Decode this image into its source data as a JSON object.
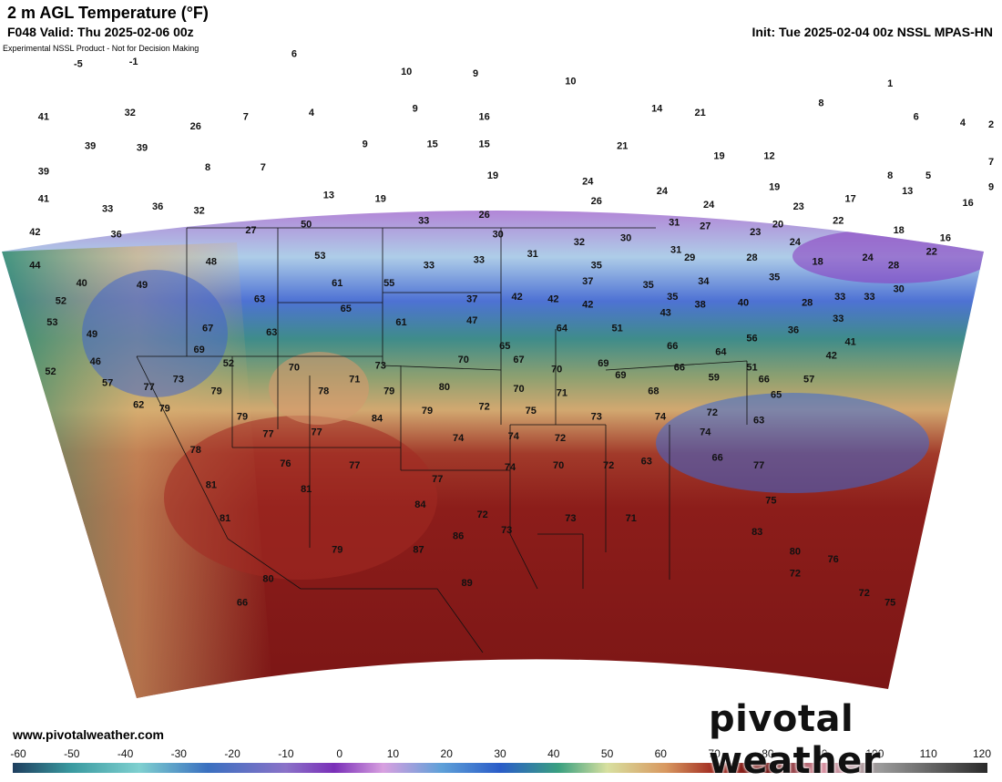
{
  "header": {
    "title": "2 m AGL Temperature (°F)",
    "valid": "F048 Valid: Thu 2025-02-06 00z",
    "init": "Init: Tue 2025-02-04 00z NSSL MPAS-HN",
    "disclaimer": "Experimental NSSL Product - Not for Decision Making"
  },
  "footer": {
    "website": "www.pivotalweather.com",
    "brand": "pivotal weather"
  },
  "colors": {
    "cold": "#7a2fb8",
    "cool": "#3f6fd6",
    "mild": "#5fa58f",
    "warm": "#e2b978",
    "hot": "#8e1a1a"
  },
  "colorbar": {
    "ticks": [
      "-60",
      "-50",
      "-40",
      "-30",
      "-20",
      "-10",
      "0",
      "10",
      "20",
      "30",
      "40",
      "50",
      "60",
      "70",
      "80",
      "90",
      "100",
      "110",
      "120"
    ]
  },
  "map_values": [
    {
      "v": "-5",
      "x": -121.0,
      "y": 50.5
    },
    {
      "v": "-1",
      "x": -117.8,
      "y": 50.6
    },
    {
      "v": "6",
      "x": -108.5,
      "y": 51.0
    },
    {
      "v": "10",
      "x": -102.0,
      "y": 50.1
    },
    {
      "v": "9",
      "x": -98.0,
      "y": 50.0
    },
    {
      "v": "10",
      "x": -92.5,
      "y": 49.6
    },
    {
      "v": "1",
      "x": -74.0,
      "y": 49.5
    },
    {
      "v": "41",
      "x": -123.0,
      "y": 47.8
    },
    {
      "v": "32",
      "x": -118.0,
      "y": 48.0
    },
    {
      "v": "26",
      "x": -114.2,
      "y": 47.3
    },
    {
      "v": "7",
      "x": -111.3,
      "y": 47.8
    },
    {
      "v": "4",
      "x": -107.5,
      "y": 48.0
    },
    {
      "v": "9",
      "x": -101.5,
      "y": 48.2
    },
    {
      "v": "16",
      "x": -97.5,
      "y": 47.8
    },
    {
      "v": "14",
      "x": -87.5,
      "y": 48.2
    },
    {
      "v": "21",
      "x": -85.0,
      "y": 48.0
    },
    {
      "v": "8",
      "x": -78.0,
      "y": 48.5
    },
    {
      "v": "6",
      "x": -72.5,
      "y": 47.8
    },
    {
      "v": "4",
      "x": -69.8,
      "y": 47.5
    },
    {
      "v": "2",
      "x": -68.0,
      "y": 47.4
    },
    {
      "v": "39",
      "x": -120.3,
      "y": 46.3
    },
    {
      "v": "39",
      "x": -117.3,
      "y": 46.2
    },
    {
      "v": "9",
      "x": -104.4,
      "y": 46.4
    },
    {
      "v": "15",
      "x": -100.5,
      "y": 46.4
    },
    {
      "v": "15",
      "x": -97.5,
      "y": 46.4
    },
    {
      "v": "21",
      "x": -89.5,
      "y": 46.3
    },
    {
      "v": "19",
      "x": -83.9,
      "y": 45.8
    },
    {
      "v": "12",
      "x": -81.0,
      "y": 45.8
    },
    {
      "v": "7",
      "x": -68.0,
      "y": 45.5
    },
    {
      "v": "39",
      "x": -123.0,
      "y": 45.0
    },
    {
      "v": "8",
      "x": -113.5,
      "y": 45.2
    },
    {
      "v": "7",
      "x": -110.3,
      "y": 45.2
    },
    {
      "v": "19",
      "x": -97.0,
      "y": 44.8
    },
    {
      "v": "24",
      "x": -91.5,
      "y": 44.5
    },
    {
      "v": "8",
      "x": -74.0,
      "y": 44.8
    },
    {
      "v": "5",
      "x": -71.8,
      "y": 44.8
    },
    {
      "v": "9",
      "x": -67.5,
      "y": 44.2
    },
    {
      "v": "41",
      "x": -123.0,
      "y": 43.6
    },
    {
      "v": "33",
      "x": -119.3,
      "y": 43.1
    },
    {
      "v": "36",
      "x": -116.4,
      "y": 43.2
    },
    {
      "v": "32",
      "x": -114.0,
      "y": 43.0
    },
    {
      "v": "13",
      "x": -106.5,
      "y": 43.8
    },
    {
      "v": "19",
      "x": -103.5,
      "y": 43.6
    },
    {
      "v": "26",
      "x": -97.5,
      "y": 42.8
    },
    {
      "v": "26",
      "x": -91.0,
      "y": 43.5
    },
    {
      "v": "24",
      "x": -87.2,
      "y": 44.0
    },
    {
      "v": "24",
      "x": -84.5,
      "y": 43.3
    },
    {
      "v": "19",
      "x": -80.7,
      "y": 44.2
    },
    {
      "v": "23",
      "x": -79.3,
      "y": 43.2
    },
    {
      "v": "17",
      "x": -76.3,
      "y": 43.6
    },
    {
      "v": "13",
      "x": -73.0,
      "y": 44.0
    },
    {
      "v": "16",
      "x": -69.5,
      "y": 43.4
    },
    {
      "v": "42",
      "x": -123.5,
      "y": 41.9
    },
    {
      "v": "36",
      "x": -118.8,
      "y": 41.8
    },
    {
      "v": "27",
      "x": -111.0,
      "y": 42.0
    },
    {
      "v": "50",
      "x": -107.8,
      "y": 42.3
    },
    {
      "v": "33",
      "x": -101.0,
      "y": 42.5
    },
    {
      "v": "30",
      "x": -96.7,
      "y": 41.8
    },
    {
      "v": "31",
      "x": -86.5,
      "y": 42.4
    },
    {
      "v": "27",
      "x": -84.7,
      "y": 42.2
    },
    {
      "v": "20",
      "x": -80.5,
      "y": 42.3
    },
    {
      "v": "22",
      "x": -77.0,
      "y": 42.5
    },
    {
      "v": "18",
      "x": -73.5,
      "y": 42.0
    },
    {
      "v": "16",
      "x": -70.8,
      "y": 41.6
    },
    {
      "v": "32",
      "x": -92.0,
      "y": 41.4
    },
    {
      "v": "30",
      "x": -89.3,
      "y": 41.6
    },
    {
      "v": "31",
      "x": -86.4,
      "y": 41.0
    },
    {
      "v": "23",
      "x": -81.8,
      "y": 41.9
    },
    {
      "v": "24",
      "x": -79.5,
      "y": 41.4
    },
    {
      "v": "22",
      "x": -71.6,
      "y": 40.9
    },
    {
      "v": "44",
      "x": -123.5,
      "y": 40.2
    },
    {
      "v": "48",
      "x": -113.3,
      "y": 40.4
    },
    {
      "v": "53",
      "x": -107.0,
      "y": 40.7
    },
    {
      "v": "31",
      "x": -94.7,
      "y": 40.8
    },
    {
      "v": "33",
      "x": -97.8,
      "y": 40.5
    },
    {
      "v": "33",
      "x": -100.7,
      "y": 40.2
    },
    {
      "v": "35",
      "x": -91.0,
      "y": 40.2
    },
    {
      "v": "29",
      "x": -85.6,
      "y": 40.6
    },
    {
      "v": "28",
      "x": -82.0,
      "y": 40.6
    },
    {
      "v": "18",
      "x": -78.2,
      "y": 40.4
    },
    {
      "v": "24",
      "x": -75.3,
      "y": 40.6
    },
    {
      "v": "28",
      "x": -73.8,
      "y": 40.2
    },
    {
      "v": "40",
      "x": -120.8,
      "y": 39.3
    },
    {
      "v": "49",
      "x": -117.3,
      "y": 39.2
    },
    {
      "v": "61",
      "x": -106.0,
      "y": 39.3
    },
    {
      "v": "55",
      "x": -103.0,
      "y": 39.3
    },
    {
      "v": "37",
      "x": -91.5,
      "y": 39.4
    },
    {
      "v": "35",
      "x": -88.0,
      "y": 39.2
    },
    {
      "v": "34",
      "x": -84.8,
      "y": 39.4
    },
    {
      "v": "35",
      "x": -80.7,
      "y": 39.6
    },
    {
      "v": "30",
      "x": -73.5,
      "y": 39.0
    },
    {
      "v": "52",
      "x": -122.0,
      "y": 38.4
    },
    {
      "v": "63",
      "x": -110.5,
      "y": 38.5
    },
    {
      "v": "65",
      "x": -105.5,
      "y": 38.0
    },
    {
      "v": "37",
      "x": -98.2,
      "y": 38.5
    },
    {
      "v": "42",
      "x": -95.6,
      "y": 38.6
    },
    {
      "v": "42",
      "x": -93.5,
      "y": 38.5
    },
    {
      "v": "42",
      "x": -91.5,
      "y": 38.2
    },
    {
      "v": "35",
      "x": -86.6,
      "y": 38.6
    },
    {
      "v": "38",
      "x": -85.0,
      "y": 38.2
    },
    {
      "v": "40",
      "x": -82.5,
      "y": 38.3
    },
    {
      "v": "28",
      "x": -78.8,
      "y": 38.3
    },
    {
      "v": "33",
      "x": -76.9,
      "y": 38.6
    },
    {
      "v": "33",
      "x": -75.2,
      "y": 38.6
    },
    {
      "v": "53",
      "x": -122.5,
      "y": 37.3
    },
    {
      "v": "61",
      "x": -102.3,
      "y": 37.3
    },
    {
      "v": "47",
      "x": -98.2,
      "y": 37.4
    },
    {
      "v": "43",
      "x": -87.0,
      "y": 37.8
    },
    {
      "v": "33",
      "x": -77.0,
      "y": 37.5
    },
    {
      "v": "36",
      "x": -79.6,
      "y": 36.9
    },
    {
      "v": "49",
      "x": -120.2,
      "y": 36.7
    },
    {
      "v": "67",
      "x": -113.5,
      "y": 37.0
    },
    {
      "v": "63",
      "x": -109.8,
      "y": 36.8
    },
    {
      "v": "64",
      "x": -93.0,
      "y": 37.0
    },
    {
      "v": "51",
      "x": -89.8,
      "y": 37.0
    },
    {
      "v": "56",
      "x": -82.0,
      "y": 36.5
    },
    {
      "v": "41",
      "x": -76.3,
      "y": 36.3
    },
    {
      "v": "69",
      "x": -114.0,
      "y": 35.9
    },
    {
      "v": "65",
      "x": -96.3,
      "y": 36.1
    },
    {
      "v": "66",
      "x": -86.6,
      "y": 36.1
    },
    {
      "v": "64",
      "x": -83.8,
      "y": 35.8
    },
    {
      "v": "42",
      "x": -77.4,
      "y": 35.6
    },
    {
      "v": "46",
      "x": -120.0,
      "y": 35.3
    },
    {
      "v": "52",
      "x": -112.3,
      "y": 35.2
    },
    {
      "v": "70",
      "x": -108.5,
      "y": 35.0
    },
    {
      "v": "73",
      "x": -103.5,
      "y": 35.1
    },
    {
      "v": "70",
      "x": -98.7,
      "y": 35.4
    },
    {
      "v": "67",
      "x": -95.5,
      "y": 35.4
    },
    {
      "v": "70",
      "x": -93.3,
      "y": 34.9
    },
    {
      "v": "69",
      "x": -90.6,
      "y": 35.2
    },
    {
      "v": "66",
      "x": -86.2,
      "y": 35.0
    },
    {
      "v": "51",
      "x": -82.0,
      "y": 35.0
    },
    {
      "v": "52",
      "x": -122.6,
      "y": 34.8
    },
    {
      "v": "71",
      "x": -105.0,
      "y": 34.4
    },
    {
      "v": "69",
      "x": -89.6,
      "y": 34.6
    },
    {
      "v": "59",
      "x": -84.2,
      "y": 34.5
    },
    {
      "v": "66",
      "x": -81.3,
      "y": 34.4
    },
    {
      "v": "57",
      "x": -78.7,
      "y": 34.4
    },
    {
      "v": "57",
      "x": -119.3,
      "y": 34.2
    },
    {
      "v": "77",
      "x": -116.9,
      "y": 34.0
    },
    {
      "v": "73",
      "x": -115.2,
      "y": 34.4
    },
    {
      "v": "79",
      "x": -113.0,
      "y": 33.8
    },
    {
      "v": "78",
      "x": -106.8,
      "y": 33.8
    },
    {
      "v": "79",
      "x": -103.0,
      "y": 33.8
    },
    {
      "v": "80",
      "x": -99.8,
      "y": 34.0
    },
    {
      "v": "70",
      "x": -95.5,
      "y": 33.9
    },
    {
      "v": "71",
      "x": -93.0,
      "y": 33.7
    },
    {
      "v": "68",
      "x": -87.7,
      "y": 33.8
    },
    {
      "v": "65",
      "x": -80.6,
      "y": 33.6
    },
    {
      "v": "62",
      "x": -117.5,
      "y": 33.1
    },
    {
      "v": "79",
      "x": -116.0,
      "y": 32.9
    },
    {
      "v": "79",
      "x": -111.5,
      "y": 32.5
    },
    {
      "v": "84",
      "x": -103.7,
      "y": 32.4
    },
    {
      "v": "79",
      "x": -100.8,
      "y": 32.8
    },
    {
      "v": "72",
      "x": -97.5,
      "y": 33.0
    },
    {
      "v": "75",
      "x": -94.8,
      "y": 32.8
    },
    {
      "v": "73",
      "x": -91.0,
      "y": 32.5
    },
    {
      "v": "74",
      "x": -87.3,
      "y": 32.5
    },
    {
      "v": "72",
      "x": -84.3,
      "y": 32.7
    },
    {
      "v": "63",
      "x": -81.6,
      "y": 32.3
    },
    {
      "v": "77",
      "x": -110.0,
      "y": 31.6
    },
    {
      "v": "77",
      "x": -107.2,
      "y": 31.7
    },
    {
      "v": "74",
      "x": -99.0,
      "y": 31.4
    },
    {
      "v": "74",
      "x": -95.8,
      "y": 31.5
    },
    {
      "v": "72",
      "x": -93.1,
      "y": 31.4
    },
    {
      "v": "74",
      "x": -84.7,
      "y": 31.7
    },
    {
      "v": "78",
      "x": -114.2,
      "y": 30.8
    },
    {
      "v": "76",
      "x": -109.0,
      "y": 30.1
    },
    {
      "v": "77",
      "x": -105.0,
      "y": 30.0
    },
    {
      "v": "74",
      "x": -96.0,
      "y": 29.9
    },
    {
      "v": "70",
      "x": -93.2,
      "y": 30.0
    },
    {
      "v": "72",
      "x": -90.3,
      "y": 30.0
    },
    {
      "v": "63",
      "x": -88.1,
      "y": 30.2
    },
    {
      "v": "66",
      "x": -84.0,
      "y": 30.4
    },
    {
      "v": "77",
      "x": -81.6,
      "y": 30.0
    },
    {
      "v": "77",
      "x": -100.2,
      "y": 29.3
    },
    {
      "v": "81",
      "x": -113.3,
      "y": 29.0
    },
    {
      "v": "81",
      "x": -107.8,
      "y": 28.8
    },
    {
      "v": "84",
      "x": -101.2,
      "y": 28.0
    },
    {
      "v": "75",
      "x": -80.9,
      "y": 28.2
    },
    {
      "v": "71",
      "x": -89.0,
      "y": 27.3
    },
    {
      "v": "73",
      "x": -92.5,
      "y": 27.3
    },
    {
      "v": "73",
      "x": -96.2,
      "y": 26.7
    },
    {
      "v": "72",
      "x": -97.6,
      "y": 27.5
    },
    {
      "v": "86",
      "x": -99.0,
      "y": 26.4
    },
    {
      "v": "81",
      "x": -112.5,
      "y": 27.3
    },
    {
      "v": "83",
      "x": -81.7,
      "y": 26.6
    },
    {
      "v": "87",
      "x": -101.3,
      "y": 25.7
    },
    {
      "v": "79",
      "x": -106.0,
      "y": 25.7
    },
    {
      "v": "80",
      "x": -79.5,
      "y": 25.6
    },
    {
      "v": "76",
      "x": -77.3,
      "y": 25.2
    },
    {
      "v": "80",
      "x": -110.0,
      "y": 24.2
    },
    {
      "v": "89",
      "x": -98.5,
      "y": 24.0
    },
    {
      "v": "72",
      "x": -79.5,
      "y": 24.5
    },
    {
      "v": "72",
      "x": -75.5,
      "y": 23.5
    },
    {
      "v": "66",
      "x": -111.5,
      "y": 23.0
    },
    {
      "v": "75",
      "x": -74.0,
      "y": 23.0
    }
  ]
}
